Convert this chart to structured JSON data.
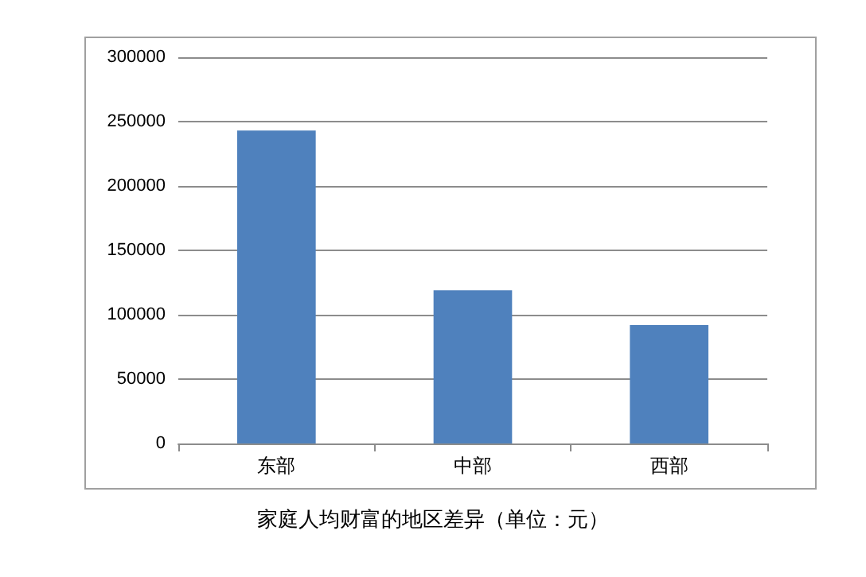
{
  "chart_data": {
    "type": "bar",
    "title": "家庭人均财富的地区差异（单位：元）",
    "categories": [
      "东部",
      "中部",
      "西部"
    ],
    "values": [
      243000,
      119000,
      92000
    ],
    "color": "#4f81bd",
    "ylim": [
      0,
      300000
    ],
    "yticks": [
      0,
      50000,
      100000,
      150000,
      200000,
      250000,
      300000
    ],
    "grid": "y"
  }
}
